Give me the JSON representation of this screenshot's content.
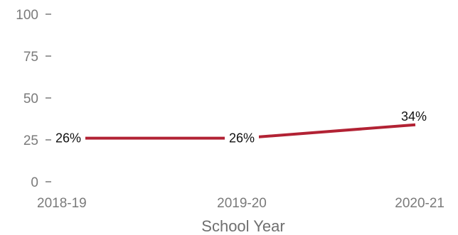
{
  "chart_data": {
    "type": "line",
    "categories": [
      "2018-19",
      "2019-20",
      "2020-21"
    ],
    "series": [
      {
        "values": [
          26,
          26,
          34
        ],
        "labels": [
          "26%",
          "26%",
          "34%"
        ],
        "color": "#b22234"
      }
    ],
    "yticks": [
      0,
      25,
      50,
      75,
      100
    ],
    "yticklabels": [
      "0",
      "25",
      "50",
      "75",
      "100"
    ],
    "ylim": [
      0,
      100
    ],
    "xlabel": "School Year",
    "ylabel": "",
    "title": "",
    "grid": false,
    "legend": "none"
  }
}
